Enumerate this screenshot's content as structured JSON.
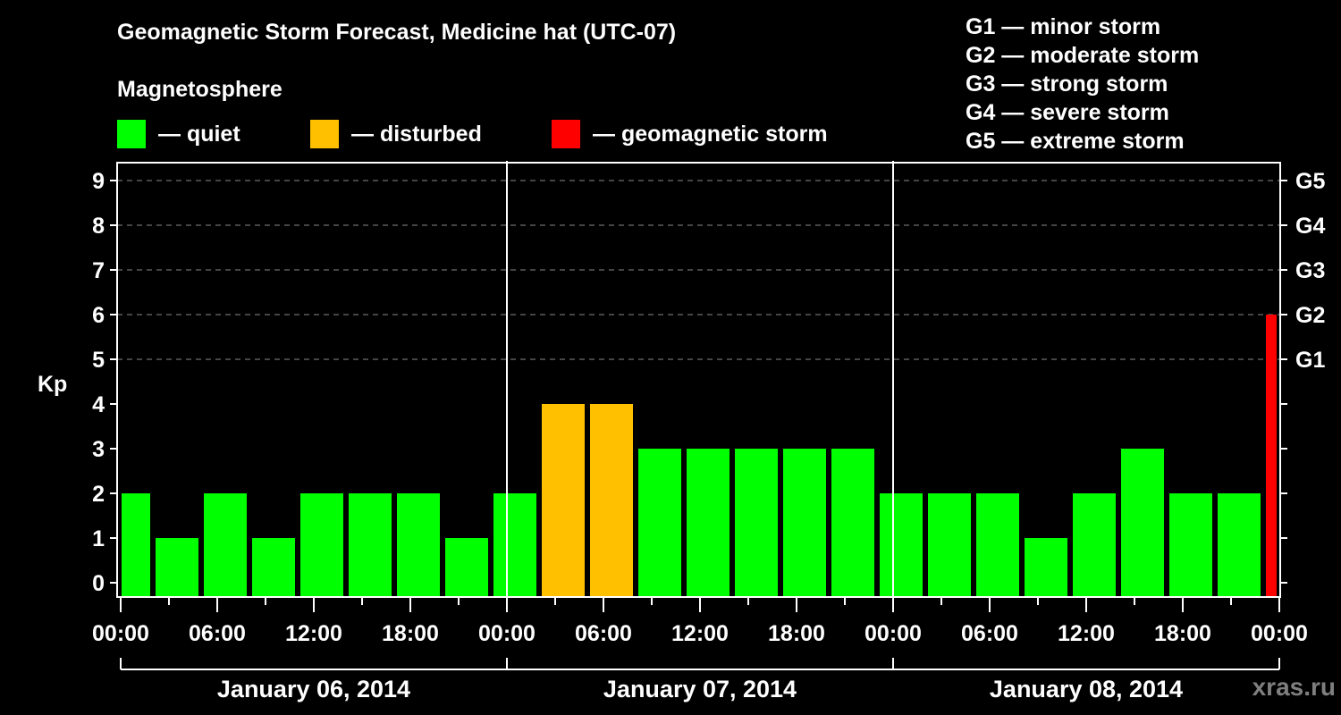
{
  "header": {
    "title": "Geomagnetic Storm Forecast, Medicine hat (UTC-07)",
    "subtitle": "Magnetosphere"
  },
  "legend": [
    {
      "label": "— quiet",
      "color": "#00ff00"
    },
    {
      "label": "— disturbed",
      "color": "#ffc000"
    },
    {
      "label": "— geomagnetic storm",
      "color": "#ff0000"
    }
  ],
  "g_scale_legend": [
    "G1 — minor storm",
    "G2 — moderate storm",
    "G3 — strong storm",
    "G4 — severe storm",
    "G5 — extreme storm"
  ],
  "watermark": "xras.ru",
  "chart_data": {
    "type": "bar",
    "title": "Geomagnetic Storm Forecast, Medicine hat (UTC-07)",
    "ylabel": "Kp",
    "ylim": [
      0,
      9
    ],
    "yticks": [
      0,
      1,
      2,
      3,
      4,
      5,
      6,
      7,
      8,
      9
    ],
    "right_axis_labels": [
      {
        "kp": 5,
        "label": "G1"
      },
      {
        "kp": 6,
        "label": "G2"
      },
      {
        "kp": 7,
        "label": "G3"
      },
      {
        "kp": 8,
        "label": "G4"
      },
      {
        "kp": 9,
        "label": "G5"
      }
    ],
    "grid": "dashed horizontal lines at Kp 5-9",
    "xtick_labels": [
      "00:00",
      "06:00",
      "12:00",
      "18:00",
      "00:00",
      "06:00",
      "12:00",
      "18:00",
      "00:00",
      "06:00",
      "12:00",
      "18:00",
      "00:00"
    ],
    "day_labels": [
      "January 06, 2014",
      "January 07, 2014",
      "January 08, 2014"
    ],
    "x_range_hours": [
      0,
      72
    ],
    "bars": [
      {
        "start_h": 0,
        "end_h": 2,
        "kp": 2,
        "status": "quiet"
      },
      {
        "start_h": 2,
        "end_h": 5,
        "kp": 1,
        "status": "quiet"
      },
      {
        "start_h": 5,
        "end_h": 8,
        "kp": 2,
        "status": "quiet"
      },
      {
        "start_h": 8,
        "end_h": 11,
        "kp": 1,
        "status": "quiet"
      },
      {
        "start_h": 11,
        "end_h": 14,
        "kp": 2,
        "status": "quiet"
      },
      {
        "start_h": 14,
        "end_h": 17,
        "kp": 2,
        "status": "quiet"
      },
      {
        "start_h": 17,
        "end_h": 20,
        "kp": 2,
        "status": "quiet"
      },
      {
        "start_h": 20,
        "end_h": 23,
        "kp": 1,
        "status": "quiet"
      },
      {
        "start_h": 23,
        "end_h": 26,
        "kp": 2,
        "status": "quiet"
      },
      {
        "start_h": 26,
        "end_h": 29,
        "kp": 4,
        "status": "disturbed"
      },
      {
        "start_h": 29,
        "end_h": 32,
        "kp": 4,
        "status": "disturbed"
      },
      {
        "start_h": 32,
        "end_h": 35,
        "kp": 3,
        "status": "quiet"
      },
      {
        "start_h": 35,
        "end_h": 38,
        "kp": 3,
        "status": "quiet"
      },
      {
        "start_h": 38,
        "end_h": 41,
        "kp": 3,
        "status": "quiet"
      },
      {
        "start_h": 41,
        "end_h": 44,
        "kp": 3,
        "status": "quiet"
      },
      {
        "start_h": 44,
        "end_h": 47,
        "kp": 3,
        "status": "quiet"
      },
      {
        "start_h": 47,
        "end_h": 50,
        "kp": 2,
        "status": "quiet"
      },
      {
        "start_h": 50,
        "end_h": 53,
        "kp": 2,
        "status": "quiet"
      },
      {
        "start_h": 53,
        "end_h": 56,
        "kp": 2,
        "status": "quiet"
      },
      {
        "start_h": 56,
        "end_h": 59,
        "kp": 1,
        "status": "quiet"
      },
      {
        "start_h": 59,
        "end_h": 62,
        "kp": 2,
        "status": "quiet"
      },
      {
        "start_h": 62,
        "end_h": 65,
        "kp": 3,
        "status": "quiet"
      },
      {
        "start_h": 65,
        "end_h": 68,
        "kp": 2,
        "status": "quiet"
      },
      {
        "start_h": 68,
        "end_h": 71,
        "kp": 2,
        "status": "quiet"
      },
      {
        "start_h": 71,
        "end_h": 72,
        "kp": 6,
        "status": "storm"
      }
    ],
    "status_colors": {
      "quiet": "#00ff00",
      "disturbed": "#ffc000",
      "storm": "#ff0000"
    }
  }
}
